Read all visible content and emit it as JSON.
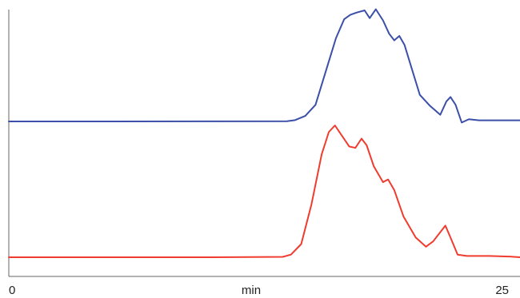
{
  "chart_data": {
    "type": "line",
    "title": "",
    "xlabel": "min",
    "ylabel": "",
    "xlim": [
      0,
      25
    ],
    "x_ticks": [
      {
        "value": 0,
        "label": "0"
      },
      {
        "value": 25,
        "label": "25"
      }
    ],
    "grid": false,
    "legend": "none",
    "series": [
      {
        "color": "#3b4fa8",
        "baseline": 0,
        "points": [
          [
            0,
            0
          ],
          [
            5,
            0
          ],
          [
            10,
            0.1
          ],
          [
            13.6,
            0.2
          ],
          [
            14.0,
            1.2
          ],
          [
            14.5,
            5
          ],
          [
            15.0,
            15
          ],
          [
            15.5,
            45
          ],
          [
            16.0,
            75
          ],
          [
            16.4,
            92
          ],
          [
            16.7,
            96
          ],
          [
            17.0,
            98
          ],
          [
            17.4,
            100
          ],
          [
            17.65,
            93
          ],
          [
            17.95,
            101
          ],
          [
            18.3,
            91
          ],
          [
            18.6,
            79
          ],
          [
            18.85,
            73
          ],
          [
            19.1,
            77
          ],
          [
            19.35,
            69
          ],
          [
            19.7,
            48
          ],
          [
            20.1,
            24
          ],
          [
            20.6,
            14
          ],
          [
            21.1,
            6
          ],
          [
            21.4,
            18
          ],
          [
            21.6,
            22
          ],
          [
            21.85,
            15
          ],
          [
            22.15,
            -1
          ],
          [
            22.5,
            2
          ],
          [
            23,
            1
          ],
          [
            24,
            1
          ],
          [
            25,
            1
          ]
        ]
      },
      {
        "color": "#f03c2e",
        "baseline": 0,
        "points": [
          [
            0,
            0
          ],
          [
            5,
            0
          ],
          [
            10,
            0
          ],
          [
            13.4,
            0.3
          ],
          [
            13.8,
            2
          ],
          [
            14.3,
            10
          ],
          [
            14.8,
            40
          ],
          [
            15.3,
            78
          ],
          [
            15.65,
            95
          ],
          [
            15.95,
            100
          ],
          [
            16.3,
            92
          ],
          [
            16.65,
            84
          ],
          [
            16.95,
            83
          ],
          [
            17.25,
            90
          ],
          [
            17.5,
            85
          ],
          [
            17.85,
            69
          ],
          [
            18.3,
            57
          ],
          [
            18.55,
            59
          ],
          [
            18.85,
            51
          ],
          [
            19.3,
            31
          ],
          [
            19.9,
            15
          ],
          [
            20.4,
            8
          ],
          [
            20.75,
            12
          ],
          [
            21.15,
            20
          ],
          [
            21.35,
            24
          ],
          [
            21.6,
            15
          ],
          [
            21.95,
            2
          ],
          [
            22.4,
            1
          ],
          [
            23.5,
            1
          ],
          [
            24.5,
            0.5
          ],
          [
            25,
            0
          ]
        ]
      }
    ]
  }
}
